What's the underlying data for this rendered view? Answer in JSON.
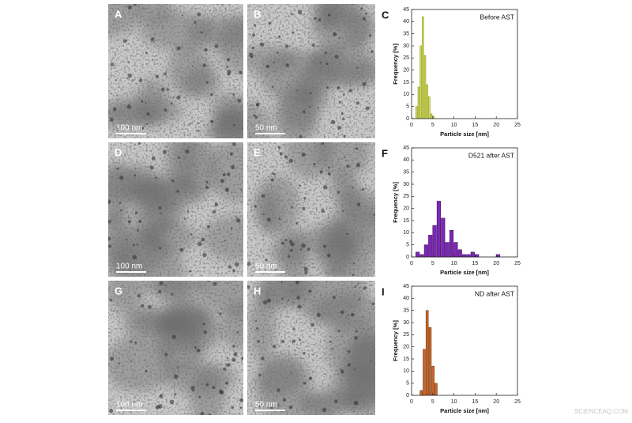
{
  "figure": {
    "images": [
      {
        "label": "A",
        "scale_bar": "100 nm"
      },
      {
        "label": "B",
        "scale_bar": "50 nm"
      },
      {
        "label": "D",
        "scale_bar": "100 nm"
      },
      {
        "label": "E",
        "scale_bar": "50 nm"
      },
      {
        "label": "G",
        "scale_bar": "100 nm"
      },
      {
        "label": "H",
        "scale_bar": "50 nm"
      }
    ],
    "watermark": "SCIENCEAQ.COM"
  },
  "chart_data": [
    {
      "type": "histogram",
      "panel_label": "C",
      "annotation": "Before AST",
      "xlabel": "Particle size [nm]",
      "ylabel": "Frequency [%]",
      "bins": [
        1,
        1.5,
        2,
        2.5,
        3,
        3.5,
        4,
        4.5,
        5,
        5.5
      ],
      "values": [
        5,
        13,
        30,
        42,
        26,
        14,
        9,
        2,
        1
      ],
      "color": "#d6dc5a",
      "edge_color": "#8c9a1e",
      "xlim": [
        0,
        25
      ],
      "xticks": [
        0,
        5,
        10,
        15,
        20,
        25
      ],
      "ylim": [
        0,
        45
      ],
      "yticks": [
        0,
        5,
        10,
        15,
        20,
        25,
        30,
        35,
        40,
        45
      ]
    },
    {
      "type": "histogram",
      "panel_label": "F",
      "annotation": "D521 after AST",
      "xlabel": "Particle size [nm]",
      "ylabel": "Frequency [%]",
      "bins": [
        1,
        2,
        3,
        4,
        5,
        6,
        7,
        8,
        9,
        10,
        11,
        12,
        13,
        14,
        15,
        16,
        17,
        18,
        19,
        20,
        21
      ],
      "values": [
        2,
        1,
        5,
        9,
        13,
        23,
        16,
        6,
        11,
        6,
        3,
        1,
        1,
        2,
        1,
        0,
        0,
        0,
        0,
        1
      ],
      "color": "#7a2ab0",
      "edge_color": "#4a1070",
      "xlim": [
        0,
        25
      ],
      "xticks": [
        0,
        5,
        10,
        15,
        20,
        25
      ],
      "ylim": [
        0,
        45
      ],
      "yticks": [
        0,
        5,
        10,
        15,
        20,
        25,
        30,
        35,
        40,
        45
      ]
    },
    {
      "type": "histogram",
      "panel_label": "I",
      "annotation": "ND after AST",
      "xlabel": "Particle size [nm]",
      "ylabel": "Frequency [%]",
      "bins": [
        2,
        2.7,
        3.4,
        4.1,
        4.8,
        5.5,
        6.2
      ],
      "values": [
        2,
        19,
        35,
        28,
        12,
        5
      ],
      "color": "#c8682c",
      "edge_color": "#7a3a12",
      "xlim": [
        0,
        25
      ],
      "xticks": [
        0,
        5,
        10,
        15,
        20,
        25
      ],
      "ylim": [
        0,
        45
      ],
      "yticks": [
        0,
        5,
        10,
        15,
        20,
        25,
        30,
        35,
        40,
        45
      ]
    }
  ]
}
